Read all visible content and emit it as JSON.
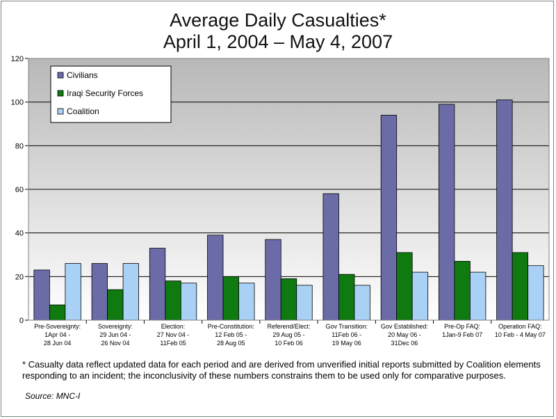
{
  "chart_data": {
    "type": "bar",
    "title": "Average Daily Casualties*",
    "subtitle": "April 1, 2004 – May 4, 2007",
    "ylim": [
      0,
      120
    ],
    "yticks": [
      0,
      20,
      40,
      60,
      80,
      100,
      120
    ],
    "categories": [
      [
        "Pre-Sovereignty:",
        "1Apr 04 -",
        "28 Jun 04"
      ],
      [
        "Sovereignty:",
        "29 Jun 04 -",
        "26 Nov 04"
      ],
      [
        "Election:",
        "27 Nov 04 -",
        "11Feb 05"
      ],
      [
        "Pre-Constitution:",
        "12 Feb 05 -",
        "28 Aug 05"
      ],
      [
        "Referend/Elect:",
        "29 Aug 05 -",
        "10 Feb 06"
      ],
      [
        "Gov Transition:",
        "11Feb 06 -",
        "19 May 06"
      ],
      [
        "Gov Established:",
        "20 May 06 -",
        "31Dec 06"
      ],
      [
        "Pre-Op FAQ:",
        "1Jan-9 Feb 07"
      ],
      [
        "Operation FAQ:",
        "10 Feb - 4 May 07"
      ]
    ],
    "series": [
      {
        "name": "Civilians",
        "color": "#6b6ba8",
        "values": [
          23,
          26,
          33,
          39,
          37,
          58,
          94,
          99,
          101
        ]
      },
      {
        "name": "Iraqi Security Forces",
        "color": "#0f7a0f",
        "values": [
          7,
          14,
          18,
          20,
          19,
          21,
          31,
          27,
          31
        ]
      },
      {
        "name": "Coalition",
        "color": "#a9d0f5",
        "values": [
          26,
          26,
          17,
          17,
          16,
          16,
          22,
          22,
          25
        ]
      }
    ]
  },
  "footnote": "* Casualty data reflect updated data for each period and are derived from unverified initial reports submitted by Coalition elements responding to an incident; the inconclusivity of these numbers constrains them to be used only for comparative purposes.",
  "source": "Source: MNC-I"
}
